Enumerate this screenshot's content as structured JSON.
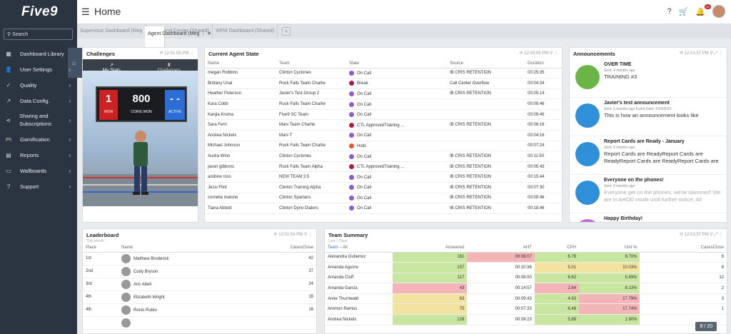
{
  "app": {
    "logo": "Five9",
    "title": "Home"
  },
  "sidebar": {
    "search_placeholder": "Search",
    "items": [
      {
        "label": "Home",
        "icon": "home-icon",
        "active": true
      },
      {
        "label": "Dashboard Library",
        "icon": "grid-icon",
        "chev": ""
      },
      {
        "label": "User Settings",
        "icon": "user-icon",
        "chev": "›"
      },
      {
        "label": "Quality",
        "icon": "check-icon",
        "chev": "›"
      },
      {
        "label": "Data Config.",
        "icon": "chart-icon",
        "chev": "›"
      },
      {
        "label": "Sharing and Subscriptions",
        "icon": "share-icon",
        "chev": "›"
      },
      {
        "label": "Gamification",
        "icon": "gamepad-icon",
        "chev": "›"
      },
      {
        "label": "Reports",
        "icon": "report-icon",
        "chev": "›"
      },
      {
        "label": "Wallboards",
        "icon": "monitor-icon",
        "chev": "›"
      },
      {
        "label": "Support",
        "icon": "help-icon",
        "chev": "›"
      }
    ]
  },
  "topbar": {
    "notif_count": "9+"
  },
  "tabs": [
    "Agent Dashboard (Meg",
    "Supervisor Dashboard (Meg",
    "Command Center (Shared)",
    "WFM Dashboard (Shared)"
  ],
  "challenges": {
    "title": "Challenges",
    "time": "12:01:55 PM",
    "tab_stats": "My Stats",
    "tab_challenges": "Challenges",
    "won": "1",
    "won_label": "WON",
    "coins": "800",
    "coins_label": "COINS WON",
    "active": "- -",
    "active_label": "ACTIVE"
  },
  "agent_state": {
    "title": "Current Agent State",
    "time": "12:03:09 PM",
    "headers": [
      "Name",
      "Team",
      "State",
      "Source",
      "Duration"
    ],
    "rows": [
      [
        "megan Robbins",
        "Clinton Cyclones",
        "On Call",
        "IB CRIS RETENTION",
        "00:25:35",
        "#8b5cd6"
      ],
      [
        "Brittany Unal",
        "Rock Falls Team Charlie",
        "Break",
        "Call Center Overflow",
        "00:04:34",
        "#b01c3c"
      ],
      [
        "Heather Peterson",
        "Javier's Test Group 2",
        "On Call",
        "IB CRIS RETENTION",
        "00:05:14",
        "#8b5cd6"
      ],
      [
        "Kara Cobb",
        "Rock Falls Team Charlie",
        "On Call",
        "",
        "00:09:46",
        "#8b5cd6"
      ],
      [
        "Kanjia Kroma",
        "Five9 SC Team",
        "On Call",
        "",
        "00:09:46",
        "#8b5cd6"
      ],
      [
        "Sara Fern",
        "Marv Team Charlie",
        "CTL ApprovedTraining ...",
        "IB CRIS RETENTION",
        "00:06:16",
        "#b01c3c"
      ],
      [
        "Andrea Nickels",
        "Marv T",
        "On Call",
        "",
        "00:04:16",
        "#8b5cd6"
      ],
      [
        "Michael Johnson",
        "Rock Falls Team Charlie",
        "Hold",
        "",
        "00:07:24",
        "#e8562a"
      ],
      [
        "Audra Winn",
        "Clinton Cyclones",
        "On Call",
        "IB CRIS RETENTION",
        "00:11:50",
        "#8b5cd6"
      ],
      [
        "jason gibbons",
        "Rock Falls Team Alpha",
        "CTL ApprovedTraining ...",
        "IB CRIS RETENTION",
        "00:05:43",
        "#b01c3c"
      ],
      [
        "andrew ross",
        "NEW TEAM 3.5",
        "On Call",
        "IB CRIS RETENTION",
        "00:15:44",
        "#8b5cd6"
      ],
      [
        "Jessi Flint",
        "Clinton Training Alpha",
        "On Call",
        "IB CRIS RETENTION",
        "00:07:30",
        "#8b5cd6"
      ],
      [
        "cornelia malone",
        "Clinton Spartans",
        "On Call",
        "IB CRIS RETENTION",
        "00:09:46",
        "#8b5cd6"
      ],
      [
        "Tiana Abbott",
        "Clinton Dyno Dialers",
        "On Call",
        "IB CRIS RETENTION",
        "00:18:46",
        "#8b5cd6"
      ]
    ]
  },
  "announcements": {
    "title": "Announcements",
    "time": "12:01:57 PM",
    "items": [
      {
        "title": "OVER TIME",
        "sent": "Sent: 4 months ago",
        "body": "TRAINING #3",
        "color": "#6bb547"
      },
      {
        "title": "Javier's test announcement",
        "sent": "Sent: 5 months ago     Event Date: 2/24/2022",
        "body": "This is how an announcement looks like",
        "color": "#2f8fd8"
      },
      {
        "title": "Report Cards are Ready - January",
        "sent": "Sent: 6 months ago",
        "body": "Report Cards are ReadyReport Cards are ReadyReport Cards are ReadyReport Cards are",
        "color": "#2f8fd8"
      },
      {
        "title": "Everyone on the phones!",
        "sent": "Sent: 6 months ago",
        "body": "Everyone get on the phones, we're slammed! We are in AHOD mode until further notice. All",
        "color": "#2f8fd8"
      },
      {
        "title": "Happy Birthday!",
        "sent": "",
        "body": "",
        "color": "#c06bd0"
      }
    ]
  },
  "leaderboard": {
    "title": "Leaderboard",
    "subtitle": "This Month",
    "time": "12:01:54 PM",
    "headers": [
      "Place",
      "Name",
      "CasesClose"
    ],
    "rows": [
      [
        "1st",
        "Matthew Broderick",
        "42"
      ],
      [
        "2nd",
        "Cody Bryson",
        "37"
      ],
      [
        "3rd",
        "Aric Abell",
        "24"
      ],
      [
        "4th",
        "Elizabeth Wright",
        "16"
      ],
      [
        "4th",
        "Rocio Rubio",
        "16"
      ],
      [
        "",
        "",
        ""
      ]
    ]
  },
  "team_summary": {
    "title": "Team Summary",
    "subtitle": "Last 7 Days",
    "time": "12:01:57 PM",
    "headers": [
      "Team",
      "All",
      "Answered",
      "AHT",
      "CPH",
      "Umi %",
      "CasesClose"
    ],
    "rows": [
      [
        "Alexandra Gutierrez",
        "161",
        "00:08:07",
        "6.78",
        "6.70%",
        "6",
        [
          "g",
          "r",
          "g",
          "g",
          ""
        ]
      ],
      [
        "Amanda Aguirre",
        "157",
        "00:10:36",
        "5.01",
        "10.03%",
        "8",
        [
          "g",
          "",
          "y",
          "y",
          ""
        ]
      ],
      [
        "Amanda Cluff",
        "117",
        "00:08:00",
        "6.62",
        "5.49%",
        "12",
        [
          "g",
          "",
          "g",
          "g",
          ""
        ]
      ],
      [
        "Amanda Garcia",
        "43",
        "00:14:57",
        "2.64",
        "8.13%",
        "2",
        [
          "r",
          "",
          "r",
          "g",
          ""
        ]
      ],
      [
        "Amie Thurnwald",
        "63",
        "00:09:43",
        "4.93",
        "17.79%",
        "3",
        [
          "y",
          "",
          "g",
          "r",
          ""
        ]
      ],
      [
        "Ammon Ramos",
        "75",
        "00:07:33",
        "6.48",
        "17.74%",
        "1",
        [
          "y",
          "",
          "g",
          "r",
          ""
        ]
      ],
      [
        "Andrea Nickels",
        "128",
        "00:09:23",
        "5.88",
        "1.90%",
        "",
        [
          "g",
          "",
          "g",
          "g",
          ""
        ]
      ]
    ]
  },
  "pager": "8 / 20"
}
